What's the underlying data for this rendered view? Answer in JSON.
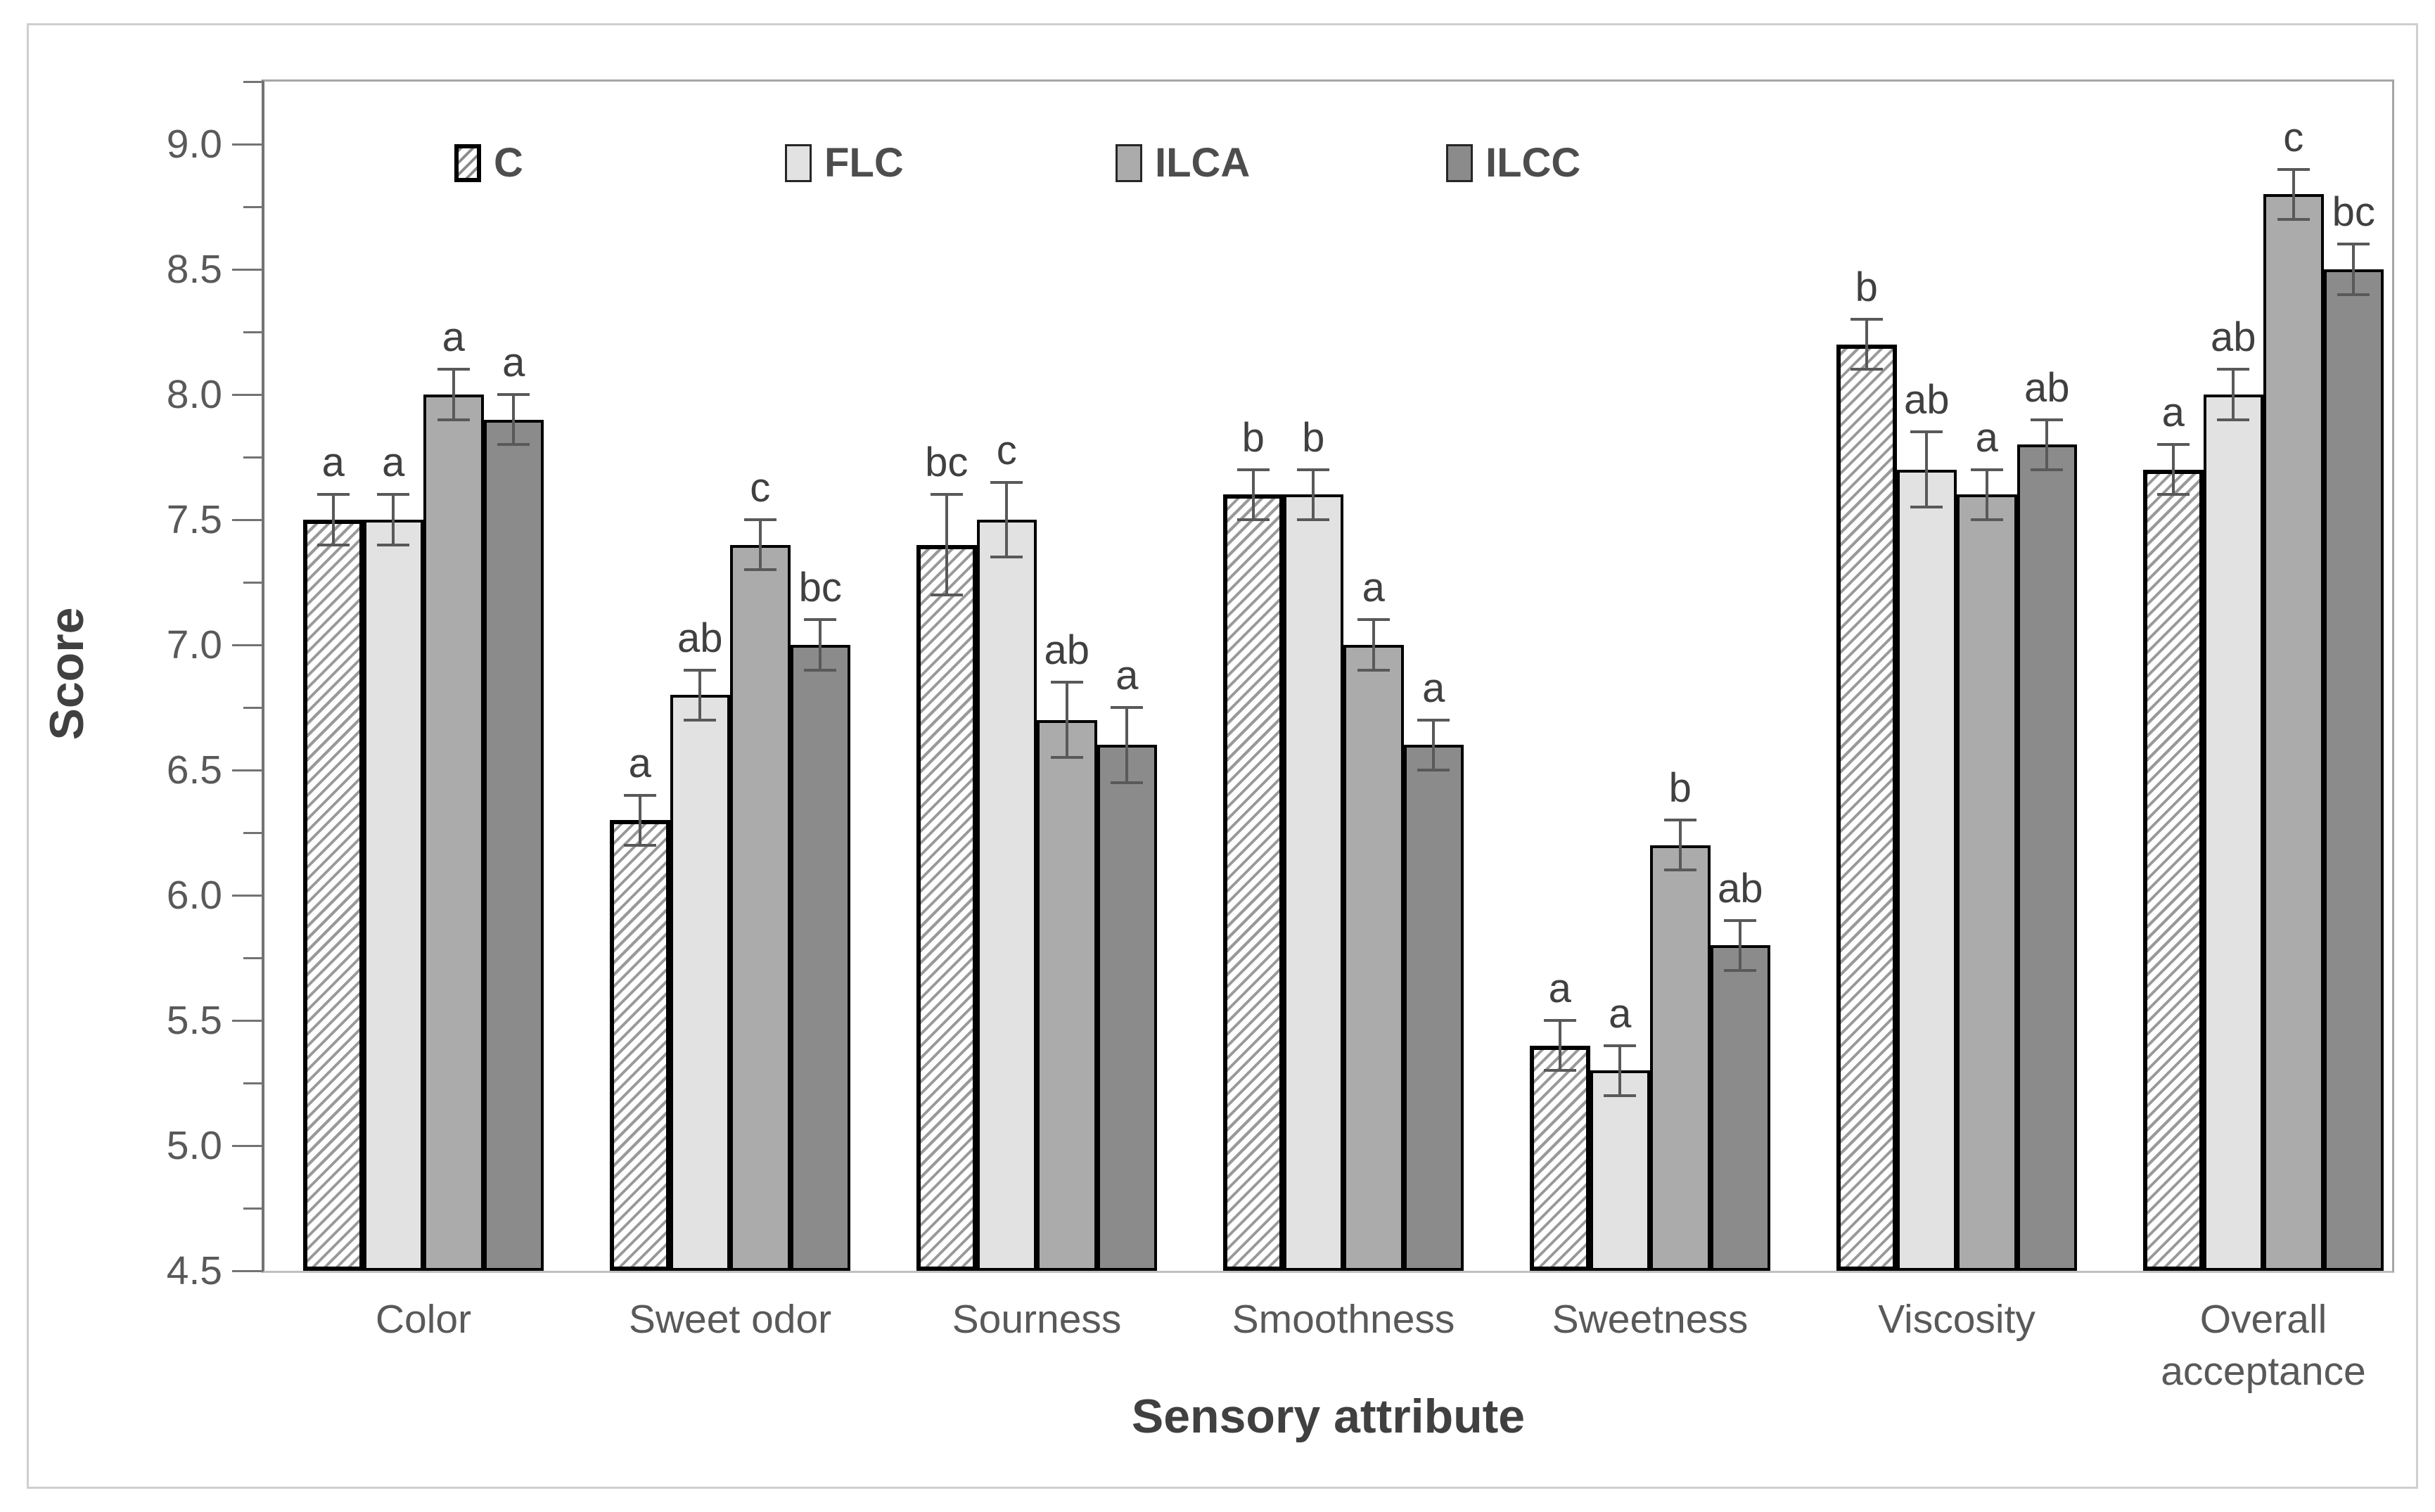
{
  "chart_data": {
    "type": "bar",
    "title": "",
    "ylabel": "Score",
    "xlabel": "Sensory attribute",
    "ylim": [
      4.5,
      9.25
    ],
    "grid": false,
    "legend_position": "top-inside",
    "ytick_labels": [
      "4.5",
      "5.0",
      "5.5",
      "6.0",
      "6.5",
      "7.0",
      "7.5",
      "8.0",
      "8.5",
      "9.0"
    ],
    "ytick_values": [
      4.5,
      5.0,
      5.5,
      6.0,
      6.5,
      7.0,
      7.5,
      8.0,
      8.5,
      9.0
    ],
    "minor_tick_values": [
      4.75,
      5.25,
      5.75,
      6.25,
      6.75,
      7.25,
      7.75,
      8.25,
      8.75,
      9.25
    ],
    "categories": [
      "Color",
      "Sweet odor",
      "Sourness",
      "Smoothness",
      "Sweetness",
      "Viscosity",
      "Overall acceptance"
    ],
    "series": [
      {
        "name": "C",
        "style": "hatched",
        "color": "#ffffff",
        "hatch_color": "#999999",
        "values": [
          7.5,
          6.3,
          7.4,
          7.6,
          5.4,
          8.2,
          7.7
        ],
        "errors": [
          0.1,
          0.1,
          0.2,
          0.1,
          0.1,
          0.1,
          0.1
        ],
        "letters": [
          "a",
          "a",
          "bc",
          "b",
          "a",
          "b",
          "a"
        ]
      },
      {
        "name": "FLC",
        "style": "solid",
        "color": "#e2e2e2",
        "values": [
          7.5,
          6.8,
          7.5,
          7.6,
          5.3,
          7.7,
          8.0
        ],
        "errors": [
          0.1,
          0.1,
          0.15,
          0.1,
          0.1,
          0.15,
          0.1
        ],
        "letters": [
          "a",
          "ab",
          "c",
          "b",
          "a",
          "ab",
          "ab"
        ]
      },
      {
        "name": "ILCA",
        "style": "solid",
        "color": "#ababab",
        "values": [
          8.0,
          7.4,
          6.7,
          7.0,
          6.2,
          7.6,
          8.8
        ],
        "errors": [
          0.1,
          0.1,
          0.15,
          0.1,
          0.1,
          0.1,
          0.1
        ],
        "letters": [
          "a",
          "c",
          "ab",
          "a",
          "b",
          "a",
          "c"
        ]
      },
      {
        "name": "ILCC",
        "style": "solid",
        "color": "#8b8b8b",
        "values": [
          7.9,
          7.0,
          6.6,
          6.6,
          5.8,
          7.8,
          8.5
        ],
        "errors": [
          0.1,
          0.1,
          0.15,
          0.1,
          0.1,
          0.1,
          0.1
        ],
        "letters": [
          "a",
          "bc",
          "a",
          "a",
          "ab",
          "ab",
          "bc"
        ]
      }
    ],
    "colors": {
      "bar_border": "#000000",
      "error_bar": "#595959",
      "axis_line": "#737373",
      "plot_border": "#a6a6a6",
      "bottom_axis": "#bfbfbf",
      "tick_label": "#595959",
      "axis_title": "#404040",
      "figure_border": "#cfcfcf"
    }
  }
}
